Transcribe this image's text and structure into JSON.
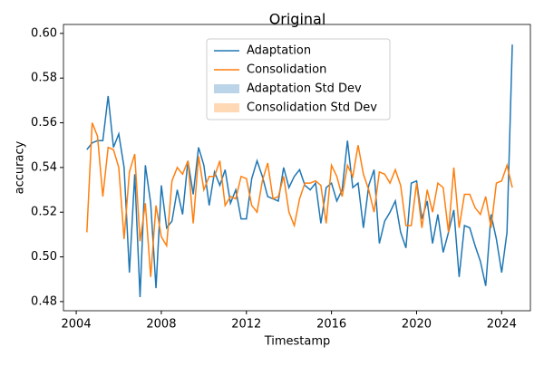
{
  "chart_data": {
    "type": "line",
    "title": "Original",
    "x_label": "Timestamp",
    "y_label": "accuracy",
    "x": [
      2004.5,
      2004.75,
      2005,
      2005.25,
      2005.5,
      2005.75,
      2006,
      2006.25,
      2006.5,
      2006.75,
      2007,
      2007.25,
      2007.5,
      2007.75,
      2008,
      2008.25,
      2008.5,
      2008.75,
      2009,
      2009.25,
      2009.5,
      2009.75,
      2010,
      2010.25,
      2010.5,
      2010.75,
      2011,
      2011.25,
      2011.5,
      2011.75,
      2012,
      2012.25,
      2012.5,
      2012.75,
      2013,
      2013.25,
      2013.5,
      2013.75,
      2014,
      2014.25,
      2014.5,
      2014.75,
      2015,
      2015.25,
      2015.5,
      2015.75,
      2016,
      2016.25,
      2016.5,
      2016.75,
      2017,
      2017.25,
      2017.5,
      2017.75,
      2018,
      2018.25,
      2018.5,
      2018.75,
      2019,
      2019.25,
      2019.5,
      2019.75,
      2020,
      2020.25,
      2020.5,
      2020.75,
      2021,
      2021.25,
      2021.5,
      2021.75,
      2022,
      2022.25,
      2022.5,
      2022.75,
      2023,
      2023.25,
      2023.5,
      2023.75,
      2024,
      2024.25,
      2024.5
    ],
    "series": [
      {
        "name": "Adaptation",
        "color": "#1f77b4",
        "values": [
          0.548,
          0.551,
          0.552,
          0.552,
          0.572,
          0.549,
          0.555,
          0.54,
          0.493,
          0.537,
          0.482,
          0.541,
          0.524,
          0.486,
          0.532,
          0.513,
          0.516,
          0.53,
          0.519,
          0.543,
          0.528,
          0.549,
          0.541,
          0.523,
          0.538,
          0.532,
          0.539,
          0.524,
          0.53,
          0.517,
          0.517,
          0.535,
          0.543,
          0.536,
          0.527,
          0.526,
          0.525,
          0.54,
          0.531,
          0.536,
          0.539,
          0.532,
          0.53,
          0.533,
          0.515,
          0.531,
          0.533,
          0.525,
          0.53,
          0.552,
          0.531,
          0.533,
          0.513,
          0.532,
          0.539,
          0.506,
          0.516,
          0.52,
          0.525,
          0.511,
          0.504,
          0.533,
          0.534,
          0.517,
          0.525,
          0.506,
          0.519,
          0.502,
          0.511,
          0.521,
          0.491,
          0.514,
          0.513,
          0.505,
          0.498,
          0.487,
          0.519,
          0.508,
          0.493,
          0.511,
          0.595
        ]
      },
      {
        "name": "Consolidation",
        "color": "#ff7f0e",
        "values": [
          0.511,
          0.56,
          0.554,
          0.527,
          0.549,
          0.548,
          0.54,
          0.508,
          0.538,
          0.546,
          0.507,
          0.524,
          0.491,
          0.523,
          0.509,
          0.505,
          0.534,
          0.54,
          0.537,
          0.543,
          0.515,
          0.545,
          0.53,
          0.536,
          0.536,
          0.543,
          0.523,
          0.527,
          0.526,
          0.536,
          0.535,
          0.523,
          0.52,
          0.534,
          0.542,
          0.526,
          0.527,
          0.536,
          0.52,
          0.514,
          0.526,
          0.533,
          0.533,
          0.534,
          0.532,
          0.515,
          0.541,
          0.536,
          0.527,
          0.541,
          0.536,
          0.55,
          0.537,
          0.53,
          0.52,
          0.538,
          0.537,
          0.533,
          0.539,
          0.532,
          0.514,
          0.514,
          0.533,
          0.513,
          0.53,
          0.52,
          0.533,
          0.531,
          0.511,
          0.54,
          0.513,
          0.528,
          0.528,
          0.522,
          0.519,
          0.527,
          0.513,
          0.533,
          0.534,
          0.541,
          0.531
        ]
      }
    ],
    "bands": [
      {
        "name": "Adaptation Std Dev",
        "color": "#bbd4e8"
      },
      {
        "name": "Consolidation Std Dev",
        "color": "#ffd8b6"
      }
    ],
    "xlim": [
      2003.4,
      2025.35
    ],
    "xticks": [
      2004,
      2008,
      2012,
      2016,
      2020,
      2024
    ],
    "ylim": [
      0.4759,
      0.604
    ],
    "yticks": [
      0.48,
      {
        "value": 0.5,
        "label": "0.50"
      },
      0.52,
      0.54,
      0.56,
      0.58,
      {
        "value": 0.6,
        "label": "0.60"
      }
    ],
    "legend": "upper center"
  }
}
